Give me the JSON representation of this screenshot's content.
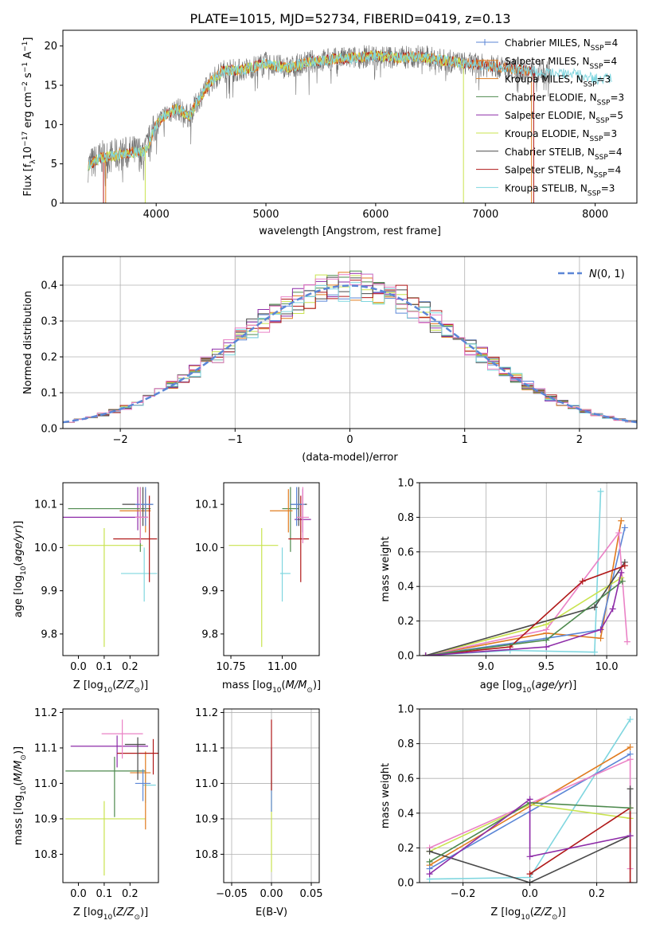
{
  "title": "PLATE=1015, MJD=52734, FIBERID=0419, z=0.13",
  "colors": {
    "miles_chabrier": "#5b86d6",
    "miles_salpeter": "#2b3e8c",
    "miles_kroupa": "#e07b1f",
    "elodie_chabrier": "#4e8a4e",
    "elodie_salpeter": "#8e2ca8",
    "elodie_kroupa": "#c9e34f",
    "stelib_chabrier": "#4a4a4a",
    "stelib_salpeter": "#b01818",
    "stelib_kroupa": "#7fd6df",
    "pink": "#ea82c6",
    "gaussian": "#5b86d6"
  },
  "chart_data": [
    {
      "type": "line",
      "panel": "spectrum",
      "xlabel": "wavelength [Angstrom, rest frame]",
      "ylabel": "Flux [f_λ10^-17 erg cm^-2 s^-1 A^-1]",
      "xlim": [
        3150,
        8380
      ],
      "ylim": [
        0,
        22
      ],
      "xticks": [
        4000,
        5000,
        6000,
        7000,
        8000
      ],
      "yticks": [
        0,
        5,
        10,
        15,
        20
      ],
      "legend": "top-right",
      "legend_entries": [
        "Chabrier MILES, N_SSP=4",
        "Salpeter MILES, N_SSP=4",
        "Kroupa MILES, N_SSP=3",
        "Chabrier ELODIE, N_SSP=3",
        "Salpeter ELODIE, N_SSP=5",
        "Kroupa ELODIE, N_SSP=3",
        "Chabrier STELIB, N_SSP=4",
        "Salpeter STELIB, N_SSP=4",
        "Kroupa STELIB, N_SSP=3"
      ],
      "continuum": {
        "x": [
          3380,
          3500,
          3600,
          3700,
          3800,
          3900,
          4000,
          4100,
          4200,
          4300,
          4400,
          4500,
          4600,
          4800,
          5000,
          5200,
          5400,
          5600,
          5800,
          6000,
          6200,
          6400,
          6600,
          6800,
          7000,
          7200,
          7400,
          7600,
          7800,
          8000,
          8150
        ],
        "y": [
          4.8,
          5.8,
          6.0,
          6.3,
          6.5,
          6.5,
          10.0,
          11.5,
          12.0,
          11.0,
          13.5,
          15.5,
          16.8,
          17.0,
          17.8,
          17.2,
          18.0,
          18.3,
          18.5,
          18.8,
          18.5,
          18.7,
          18.2,
          17.8,
          17.5,
          17.2,
          16.8,
          16.6,
          16.5,
          15.8,
          16.0
        ]
      }
    },
    {
      "type": "bar",
      "panel": "residuals",
      "xlabel": "(data-model)/error",
      "ylabel": "Normed distribution",
      "xlim": [
        -2.5,
        2.5
      ],
      "ylim": [
        0,
        0.48
      ],
      "xticks": [
        -2,
        -1,
        0,
        1,
        2
      ],
      "yticks": [
        0.0,
        0.1,
        0.2,
        0.3,
        0.4
      ],
      "legend": "top-right",
      "legend_label": "N(0,1)",
      "bin_width": 0.1
    },
    {
      "type": "scatter",
      "panel": "age_vs_Z",
      "xlabel": "Z [log10(Z/Z⊙)]",
      "ylabel": "age [log10(age/yr)]",
      "xlim": [
        -0.06,
        0.31
      ],
      "ylim": [
        9.75,
        10.15
      ],
      "xticks": [
        0.0,
        0.1,
        0.2
      ],
      "yticks": [
        9.8,
        9.9,
        10.0,
        10.1
      ],
      "points": [
        {
          "x": 0.1,
          "y": 10.005,
          "xerr": [
            0.14,
            0.15
          ],
          "yerr": [
            0.235,
            0.04
          ],
          "color": "elodie_kroupa"
        },
        {
          "x": 0.255,
          "y": 9.94,
          "xerr": [
            0.09,
            0.05
          ],
          "yerr": [
            0.065,
            0.06
          ],
          "color": "stelib_kroupa"
        },
        {
          "x": 0.23,
          "y": 10.07,
          "xerr": [
            0.29,
            0.04
          ],
          "yerr": [
            0.03,
            0.07
          ],
          "color": "elodie_salpeter"
        },
        {
          "x": 0.24,
          "y": 10.09,
          "xerr": [
            0.28,
            0.04
          ],
          "yerr": [
            0.1,
            0.05
          ],
          "color": "elodie_chabrier"
        },
        {
          "x": 0.26,
          "y": 10.085,
          "xerr": [
            0.1,
            0.02
          ],
          "yerr": [
            0.05,
            0.05
          ],
          "color": "miles_kroupa"
        },
        {
          "x": 0.275,
          "y": 10.02,
          "xerr": [
            0.14,
            0.03
          ],
          "yerr": [
            0.1,
            0.1
          ],
          "color": "stelib_salpeter"
        },
        {
          "x": 0.25,
          "y": 10.1,
          "xerr": [
            0.08,
            0.04
          ],
          "yerr": [
            0.05,
            0.04
          ],
          "color": "stelib_chabrier"
        },
        {
          "x": 0.26,
          "y": 10.1,
          "xerr": [
            0.04,
            0.03
          ],
          "yerr": [
            0.05,
            0.04
          ],
          "color": "miles_chabrier"
        },
        {
          "x": 0.24,
          "y": 10.07,
          "xerr": [
            0.02,
            0.03
          ],
          "yerr": [
            0.06,
            0.07
          ],
          "color": "pink"
        }
      ]
    },
    {
      "type": "scatter",
      "panel": "age_vs_mass",
      "xlabel": "mass [log10(M/M⊙)]",
      "ylabel": "",
      "xlim": [
        10.715,
        11.18
      ],
      "ylim": [
        9.75,
        10.15
      ],
      "xticks": [
        10.75,
        11.0
      ],
      "yticks": [
        9.8,
        9.9,
        10.0,
        10.1
      ],
      "points": [
        {
          "x": 10.9,
          "y": 10.005,
          "xerr": [
            0.16,
            0.08
          ],
          "yerr": [
            0.235,
            0.04
          ],
          "color": "elodie_kroupa"
        },
        {
          "x": 11.0,
          "y": 9.94,
          "xerr": [
            0.01,
            0.04
          ],
          "yerr": [
            0.065,
            0.06
          ],
          "color": "stelib_kroupa"
        },
        {
          "x": 11.1,
          "y": 10.065,
          "xerr": [
            0.04,
            0.04
          ],
          "yerr": [
            0.03,
            0.07
          ],
          "color": "elodie_salpeter"
        },
        {
          "x": 11.04,
          "y": 10.09,
          "xerr": [
            0.04,
            0.04
          ],
          "yerr": [
            0.1,
            0.05
          ],
          "color": "elodie_chabrier"
        },
        {
          "x": 11.03,
          "y": 10.085,
          "xerr": [
            0.09,
            0.02
          ],
          "yerr": [
            0.05,
            0.05
          ],
          "color": "miles_kroupa"
        },
        {
          "x": 11.09,
          "y": 10.02,
          "xerr": [
            0.06,
            0.04
          ],
          "yerr": [
            0.1,
            0.1
          ],
          "color": "stelib_salpeter"
        },
        {
          "x": 11.08,
          "y": 10.1,
          "xerr": [
            0.04,
            0.04
          ],
          "yerr": [
            0.05,
            0.04
          ],
          "color": "stelib_chabrier"
        },
        {
          "x": 11.07,
          "y": 10.1,
          "xerr": [
            0.03,
            0.04
          ],
          "yerr": [
            0.05,
            0.04
          ],
          "color": "miles_chabrier"
        },
        {
          "x": 11.1,
          "y": 10.07,
          "xerr": [
            0.03,
            0.03
          ],
          "yerr": [
            0.06,
            0.07
          ],
          "color": "pink"
        }
      ]
    },
    {
      "type": "line",
      "panel": "massweight_vs_age",
      "xlabel": "age [log10(age/yr)]",
      "ylabel": "mass weight",
      "xlim": [
        8.45,
        10.25
      ],
      "ylim": [
        0,
        1.0
      ],
      "xticks": [
        9.0,
        9.5,
        10.0
      ],
      "yticks": [
        0.0,
        0.2,
        0.4,
        0.6,
        0.8,
        1.0
      ],
      "series": [
        {
          "color": "stelib_kroupa",
          "x": [
            8.5,
            9.2,
            9.9,
            9.95
          ],
          "y": [
            0.0,
            0.03,
            0.02,
            0.95
          ]
        },
        {
          "color": "miles_kroupa",
          "x": [
            8.5,
            9.5,
            9.95,
            10.12
          ],
          "y": [
            0.0,
            0.13,
            0.1,
            0.78
          ]
        },
        {
          "color": "miles_chabrier",
          "x": [
            8.5,
            9.5,
            9.95,
            10.15
          ],
          "y": [
            0.0,
            0.1,
            0.15,
            0.74
          ]
        },
        {
          "color": "pink",
          "x": [
            8.5,
            9.5,
            10.1,
            10.17
          ],
          "y": [
            0.0,
            0.15,
            0.71,
            0.08
          ]
        },
        {
          "color": "elodie_kroupa",
          "x": [
            8.5,
            9.5,
            10.12
          ],
          "y": [
            0.0,
            0.18,
            0.45
          ]
        },
        {
          "color": "stelib_chabrier",
          "x": [
            8.5,
            9.9,
            10.15
          ],
          "y": [
            0.0,
            0.28,
            0.54
          ]
        },
        {
          "color": "stelib_salpeter",
          "x": [
            8.5,
            9.2,
            9.8,
            10.15
          ],
          "y": [
            0.0,
            0.05,
            0.43,
            0.52
          ]
        },
        {
          "color": "elodie_chabrier",
          "x": [
            8.5,
            9.5,
            10.13
          ],
          "y": [
            0.0,
            0.09,
            0.43
          ]
        },
        {
          "color": "elodie_salpeter",
          "x": [
            8.5,
            9.5,
            9.95,
            10.05,
            10.12
          ],
          "y": [
            0.0,
            0.05,
            0.15,
            0.27,
            0.48
          ]
        }
      ]
    },
    {
      "type": "scatter",
      "panel": "mass_vs_Z",
      "xlabel": "Z [log10(Z/Z⊙)]",
      "ylabel": "mass [log10(M/M⊙)]",
      "xlim": [
        -0.06,
        0.31
      ],
      "ylim": [
        10.72,
        11.21
      ],
      "xticks": [
        0.0,
        0.1,
        0.2
      ],
      "yticks": [
        10.8,
        10.9,
        11.0,
        11.1,
        11.2
      ],
      "points": [
        {
          "x": 0.1,
          "y": 10.9,
          "xerr": [
            0.15,
            0.16
          ],
          "yerr": [
            0.16,
            0.05
          ],
          "color": "elodie_kroupa"
        },
        {
          "x": 0.26,
          "y": 10.995,
          "xerr": [
            0.01,
            0.04
          ],
          "yerr": [
            0.05,
            0.04
          ],
          "color": "stelib_kroupa"
        },
        {
          "x": 0.15,
          "y": 11.105,
          "xerr": [
            0.18,
            0.12
          ],
          "yerr": [
            0.06,
            0.03
          ],
          "color": "elodie_salpeter"
        },
        {
          "x": 0.14,
          "y": 11.035,
          "xerr": [
            0.19,
            0.12
          ],
          "yerr": [
            0.13,
            0.04
          ],
          "color": "elodie_chabrier"
        },
        {
          "x": 0.26,
          "y": 11.03,
          "xerr": [
            0.06,
            0.02
          ],
          "yerr": [
            0.16,
            0.06
          ],
          "color": "miles_kroupa"
        },
        {
          "x": 0.29,
          "y": 11.085,
          "xerr": [
            0.14,
            0.02
          ],
          "yerr": [
            0.06,
            0.04
          ],
          "color": "stelib_salpeter"
        },
        {
          "x": 0.23,
          "y": 11.11,
          "xerr": [
            0.05,
            0.03
          ],
          "yerr": [
            0.1,
            0.02
          ],
          "color": "stelib_chabrier"
        },
        {
          "x": 0.25,
          "y": 11.0,
          "xerr": [
            0.03,
            0.03
          ],
          "yerr": [
            0.05,
            0.04
          ],
          "color": "miles_chabrier"
        },
        {
          "x": 0.17,
          "y": 11.14,
          "xerr": [
            0.08,
            0.08
          ],
          "yerr": [
            0.07,
            0.04
          ],
          "color": "pink"
        }
      ]
    },
    {
      "type": "scatter",
      "panel": "mass_vs_EBV",
      "xlabel": "E(B-V)",
      "ylabel": "",
      "xlim": [
        -0.06,
        0.06
      ],
      "ylim": [
        10.72,
        11.21
      ],
      "xticks": [
        -0.05,
        0.0,
        0.05
      ],
      "yticks": [
        10.8,
        10.9,
        11.0,
        11.1,
        11.2
      ],
      "points": [
        {
          "x": 0.0,
          "y": 10.95,
          "xerr": [
            0,
            0
          ],
          "yerr": [
            0.2,
            0.06
          ],
          "color": "elodie_kroupa"
        },
        {
          "x": 0.0,
          "y": 11.02,
          "xerr": [
            0,
            0
          ],
          "yerr": [
            0.1,
            0.08
          ],
          "color": "miles_chabrier"
        },
        {
          "x": 0.0,
          "y": 11.1,
          "xerr": [
            0,
            0
          ],
          "yerr": [
            0.12,
            0.08
          ],
          "color": "stelib_salpeter"
        }
      ]
    },
    {
      "type": "line",
      "panel": "massweight_vs_Z",
      "xlabel": "Z [log10(Z/Z⊙)]",
      "ylabel": "mass weight",
      "xlim": [
        -0.33,
        0.32
      ],
      "ylim": [
        0,
        1.0
      ],
      "xticks": [
        -0.2,
        0.0,
        0.2
      ],
      "yticks": [
        0.0,
        0.2,
        0.4,
        0.6,
        0.8,
        1.0
      ],
      "series": [
        {
          "color": "stelib_kroupa",
          "x": [
            -0.3,
            0.0,
            0.3
          ],
          "y": [
            0.02,
            0.03,
            0.94
          ]
        },
        {
          "color": "miles_kroupa",
          "x": [
            -0.3,
            0.3
          ],
          "y": [
            0.1,
            0.78
          ]
        },
        {
          "color": "miles_chabrier",
          "x": [
            -0.3,
            0.3
          ],
          "y": [
            0.08,
            0.74
          ]
        },
        {
          "color": "pink",
          "x": [
            -0.3,
            0.3,
            0.3
          ],
          "y": [
            0.2,
            0.71,
            0.08
          ]
        },
        {
          "color": "elodie_kroupa",
          "x": [
            -0.3,
            0.0,
            0.3
          ],
          "y": [
            0.18,
            0.45,
            0.37
          ]
        },
        {
          "color": "stelib_chabrier",
          "x": [
            -0.3,
            0.0,
            0.3,
            0.3
          ],
          "y": [
            0.18,
            0.0,
            0.27,
            0.54
          ]
        },
        {
          "color": "stelib_salpeter",
          "x": [
            0.0,
            0.3,
            0.3
          ],
          "y": [
            0.05,
            0.43,
            0.0
          ]
        },
        {
          "color": "elodie_chabrier",
          "x": [
            -0.3,
            0.0,
            0.3
          ],
          "y": [
            0.12,
            0.46,
            0.43
          ]
        },
        {
          "color": "elodie_salpeter",
          "x": [
            -0.3,
            0.0,
            0.0,
            0.3
          ],
          "y": [
            0.05,
            0.48,
            0.15,
            0.27
          ]
        }
      ]
    }
  ]
}
